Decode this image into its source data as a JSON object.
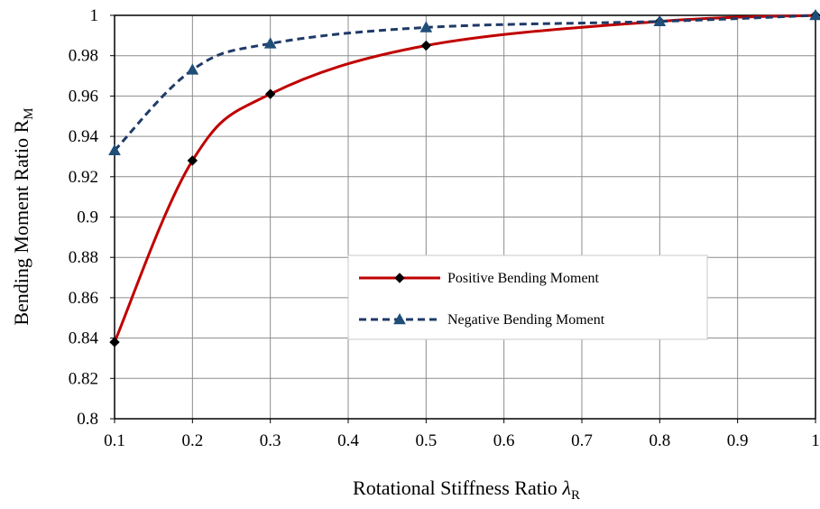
{
  "chart_data": {
    "type": "line",
    "xlabel": "Rotational Stiffness Ratio λR",
    "xlabel_main": "Rotational Stiffness Ratio ",
    "xlabel_symbol": "λ",
    "xlabel_sub": "R",
    "ylabel": "Bending Moment Ratio RM",
    "ylabel_main": "Bending Moment Ratio R",
    "ylabel_sub": "M",
    "xlim": [
      0.1,
      1.0
    ],
    "ylim": [
      0.8,
      1.0
    ],
    "x_ticks": [
      "0.1",
      "0.2",
      "0.3",
      "0.4",
      "0.5",
      "0.6",
      "0.7",
      "0.8",
      "0.9",
      "1"
    ],
    "y_ticks": [
      "0.8",
      "0.82",
      "0.84",
      "0.86",
      "0.88",
      "0.9",
      "0.92",
      "0.94",
      "0.96",
      "0.98",
      "1"
    ],
    "grid": true,
    "legend_position": "center-right",
    "series": [
      {
        "name": "Positive Bending Moment",
        "color": "#c00000",
        "line_style": "solid",
        "marker": "diamond",
        "marker_color": "#000000",
        "x": [
          0.1,
          0.2,
          0.3,
          0.5,
          0.8,
          1.0
        ],
        "y": [
          0.838,
          0.928,
          0.961,
          0.985,
          0.997,
          1.0
        ]
      },
      {
        "name": "Negative Bending Moment",
        "color": "#1f3a68",
        "line_style": "dashed",
        "marker": "triangle",
        "marker_color": "#1f4e79",
        "x": [
          0.1,
          0.2,
          0.3,
          0.5,
          0.8,
          1.0
        ],
        "y": [
          0.933,
          0.973,
          0.986,
          0.994,
          0.997,
          1.0
        ]
      }
    ]
  }
}
